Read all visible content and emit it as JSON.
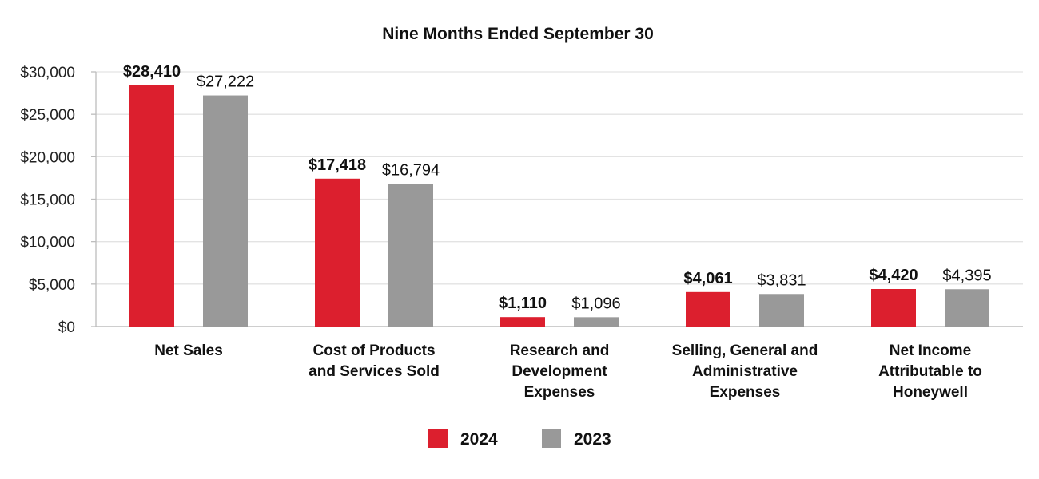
{
  "chart_data": {
    "type": "bar",
    "title": "Nine Months Ended September 30",
    "categories": [
      [
        "Net Sales"
      ],
      [
        "Cost of Products",
        "and Services Sold"
      ],
      [
        "Research and",
        "Development",
        "Expenses"
      ],
      [
        "Selling, General and",
        "Administrative",
        "Expenses"
      ],
      [
        "Net Income",
        "Attributable to",
        "Honeywell"
      ]
    ],
    "series": [
      {
        "name": "2024",
        "color": "#dc1f2e",
        "values": [
          28410,
          17418,
          1110,
          4061,
          4420
        ],
        "labels": [
          "$28,410",
          "$17,418",
          "$1,110",
          "$4,061",
          "$4,420"
        ],
        "label_bold": true
      },
      {
        "name": "2023",
        "color": "#999999",
        "values": [
          27222,
          16794,
          1096,
          3831,
          4395
        ],
        "labels": [
          "$27,222",
          "$16,794",
          "$1,096",
          "$3,831",
          "$4,395"
        ],
        "label_bold": false
      }
    ],
    "yticks": [
      0,
      5000,
      10000,
      15000,
      20000,
      25000,
      30000
    ],
    "ytick_labels": [
      "$0",
      "$5,000",
      "$10,000",
      "$15,000",
      "$20,000",
      "$25,000",
      "$30,000"
    ],
    "ylim": [
      0,
      30000
    ],
    "grid": true,
    "legend_position": "bottom-center",
    "xlabel": "",
    "ylabel": ""
  }
}
